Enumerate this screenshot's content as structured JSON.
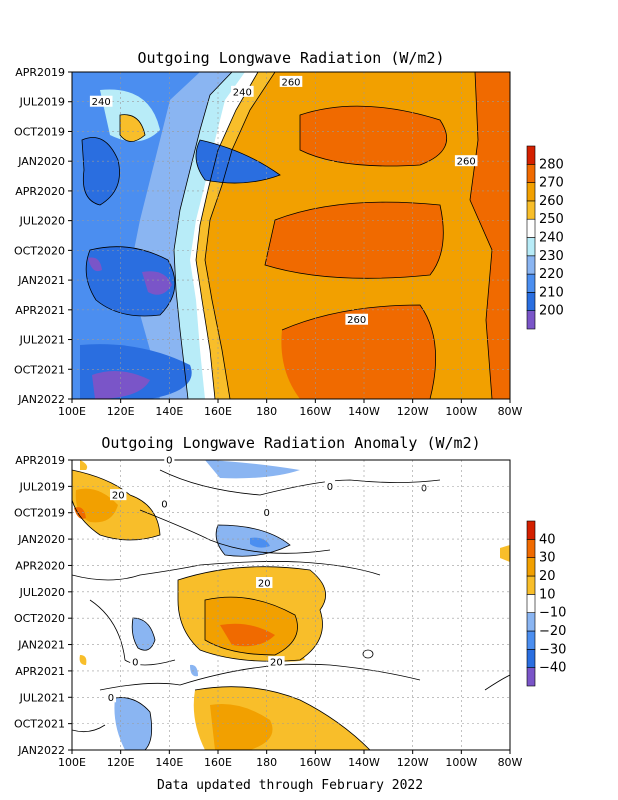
{
  "footer": "Data updated through February 2022",
  "chart_data": [
    {
      "type": "heatmap",
      "title": "Outgoing Longwave Radiation (W/m2)",
      "x_ticks": [
        "100E",
        "120E",
        "140E",
        "160E",
        "180",
        "160W",
        "140W",
        "120W",
        "100W",
        "80W"
      ],
      "x_range_deg_east": [
        100,
        280
      ],
      "y_ticks": [
        "APR2019",
        "JUL2019",
        "OCT2019",
        "JAN2020",
        "APR2020",
        "JUL2020",
        "OCT2020",
        "JAN2021",
        "APR2021",
        "JUL2021",
        "OCT2021",
        "JAN2022"
      ],
      "y_range": [
        "APR2019",
        "JAN2022"
      ],
      "colorbar": {
        "levels": [
          200,
          210,
          220,
          230,
          240,
          250,
          260,
          270,
          280
        ],
        "labels": [
          "200",
          "210",
          "220",
          "230",
          "240",
          "250",
          "260",
          "270",
          "280"
        ],
        "colors": [
          "#7a55c8",
          "#2a6ee0",
          "#4b8ef0",
          "#8ab5f2",
          "#b8ecf8",
          "#ffffff",
          "#f8be2a",
          "#f2a000",
          "#f06a00",
          "#d42000"
        ]
      },
      "contour_labels": [
        {
          "text": "240",
          "lon": 112,
          "month": 3
        },
        {
          "text": "240",
          "lon": 170,
          "month": 2
        },
        {
          "text": "260",
          "lon": 190,
          "month": 1
        },
        {
          "text": "260",
          "lon": 262,
          "month": 9
        },
        {
          "text": "260",
          "lon": 217,
          "month": 25
        }
      ],
      "grid": true
    },
    {
      "type": "heatmap",
      "title": "Outgoing Longwave Radiation Anomaly (W/m2)",
      "x_ticks": [
        "100E",
        "120E",
        "140E",
        "160E",
        "180",
        "160W",
        "140W",
        "120W",
        "100W",
        "80W"
      ],
      "x_range_deg_east": [
        100,
        280
      ],
      "y_ticks": [
        "APR2019",
        "JUL2019",
        "OCT2019",
        "JAN2020",
        "APR2020",
        "JUL2020",
        "OCT2020",
        "JAN2021",
        "APR2021",
        "JUL2021",
        "OCT2021",
        "JAN2022"
      ],
      "y_range": [
        "APR2019",
        "JAN2022"
      ],
      "colorbar": {
        "levels": [
          -40,
          -30,
          -20,
          -10,
          10,
          20,
          30,
          40
        ],
        "labels": [
          "−40",
          "−30",
          "−20",
          "−10",
          "10",
          "20",
          "30",
          "40"
        ],
        "colors": [
          "#7a55c8",
          "#2a6ee0",
          "#4b8ef0",
          "#8ab5f2",
          "#ffffff",
          "#f8be2a",
          "#f2a000",
          "#f06a00",
          "#d42000"
        ]
      },
      "contour_labels": [
        {
          "text": "20",
          "lon": 119,
          "month": 4
        },
        {
          "text": "20",
          "lon": 179,
          "month": 14
        },
        {
          "text": "20",
          "lon": 184,
          "month": 23
        },
        {
          "text": "0",
          "lon": 140,
          "month": 0
        },
        {
          "text": "0",
          "lon": 138,
          "month": 5
        },
        {
          "text": "0",
          "lon": 180,
          "month": 6
        },
        {
          "text": "0",
          "lon": 206,
          "month": 3
        },
        {
          "text": "0",
          "lon": 116,
          "month": 27
        },
        {
          "text": "0",
          "lon": 126,
          "month": 23
        }
      ],
      "grid": true
    }
  ]
}
